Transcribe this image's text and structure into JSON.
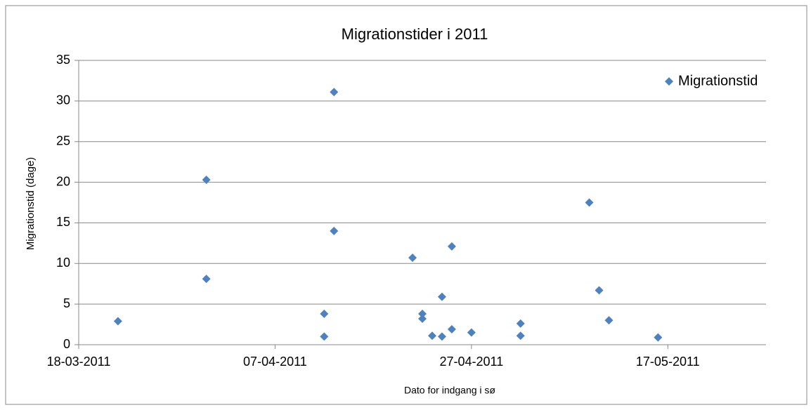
{
  "chart_data": {
    "type": "scatter",
    "title": "Migrationstider i 2011",
    "x_label": "Dato for indgang i sø",
    "y_label": "Migrationstid (dage)",
    "series": [
      {
        "name": "Migrationstid",
        "color": "#4f81bd",
        "x": [
          "22-03-2011",
          "31-03-2011",
          "31-03-2011",
          "12-04-2011",
          "12-04-2011",
          "13-04-2011",
          "13-04-2011",
          "21-04-2011",
          "22-04-2011",
          "22-04-2011",
          "23-04-2011",
          "24-04-2011",
          "24-04-2011",
          "25-04-2011",
          "25-04-2011",
          "27-04-2011",
          "02-05-2011",
          "02-05-2011",
          "09-05-2011",
          "10-05-2011",
          "11-05-2011",
          "16-05-2011"
        ],
        "values": [
          2.9,
          8.1,
          20.3,
          3.8,
          1.0,
          31.1,
          14.0,
          10.7,
          3.8,
          3.2,
          1.1,
          1.0,
          5.9,
          12.1,
          1.9,
          1.5,
          2.6,
          1.1,
          17.5,
          6.7,
          3.0,
          0.9
        ]
      }
    ],
    "xlim": [
      "18-03-2011",
      "27-05-2011"
    ],
    "xticks": [
      "18-03-2011",
      "07-04-2011",
      "27-04-2011",
      "17-05-2011"
    ],
    "ylim": [
      0,
      35
    ],
    "yticks": [
      0,
      5,
      10,
      15,
      20,
      25,
      30,
      35
    ],
    "grid": true,
    "legend": "upper-right"
  }
}
